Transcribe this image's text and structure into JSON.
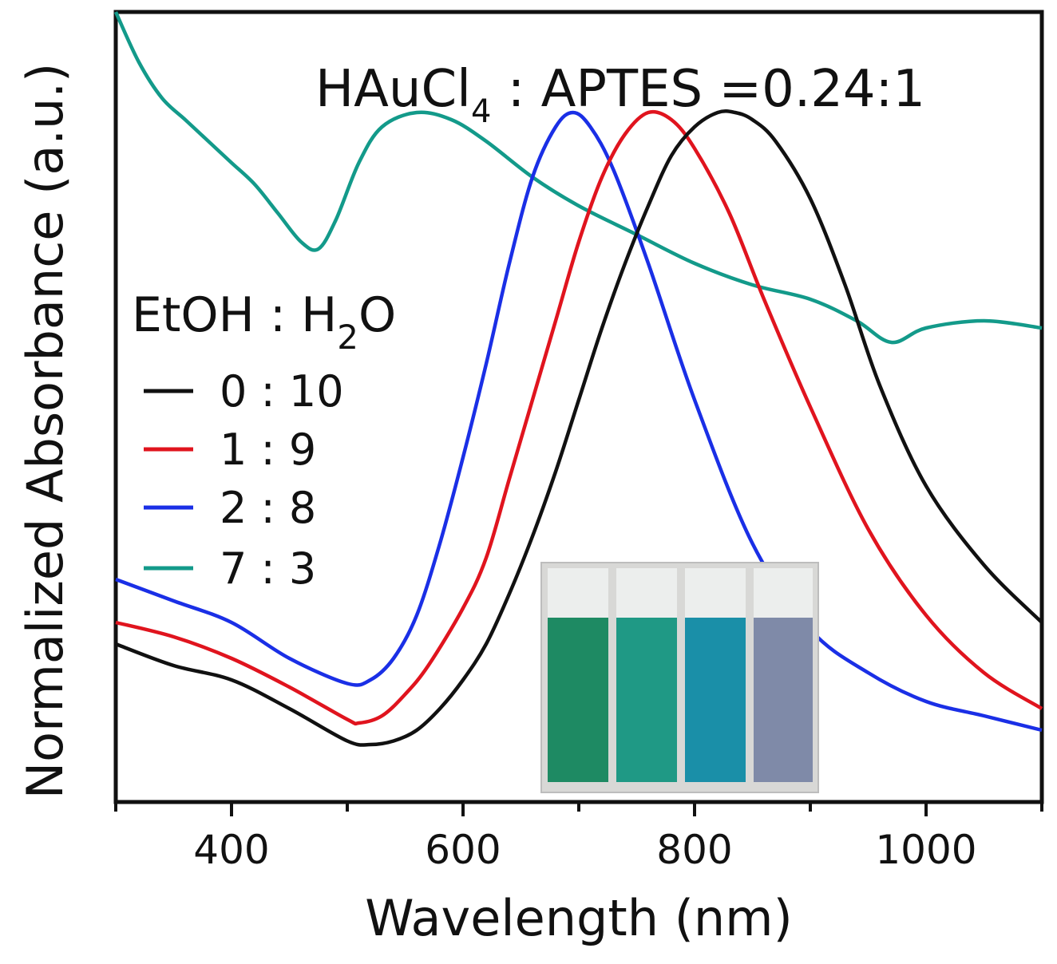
{
  "chart_data": {
    "type": "line",
    "title": "",
    "annotation": {
      "prefix": "HAuCl",
      "subscript": "4",
      "suffix": " : APTES =0.24:1"
    },
    "xlabel": "Wavelength (nm)",
    "ylabel": "Normalized Absorbance (a.u.)",
    "xlim": [
      300,
      1100
    ],
    "ylim": [
      0,
      1.1
    ],
    "xticks": [
      400,
      600,
      800,
      1000
    ],
    "xtick_labels": [
      "400",
      "600",
      "800",
      "1000"
    ],
    "grid": false,
    "legend": {
      "title_prefix": "EtOH : H",
      "title_subscript": "2",
      "title_suffix": "O",
      "placement": "left"
    },
    "inset": "photo of four cuvettes with green, teal, cyan and grey-blue solutions",
    "series": [
      {
        "name": "0 : 10",
        "color": "#111111",
        "x": [
          300,
          350,
          400,
          450,
          500,
          520,
          540,
          560,
          580,
          600,
          620,
          640,
          660,
          680,
          700,
          720,
          740,
          760,
          780,
          800,
          820,
          835,
          850,
          870,
          900,
          930,
          960,
          1000,
          1050,
          1100
        ],
        "y": [
          0.22,
          0.19,
          0.17,
          0.13,
          0.085,
          0.08,
          0.085,
          0.1,
          0.13,
          0.17,
          0.22,
          0.29,
          0.37,
          0.46,
          0.56,
          0.66,
          0.75,
          0.83,
          0.9,
          0.94,
          0.96,
          0.96,
          0.95,
          0.92,
          0.84,
          0.72,
          0.58,
          0.44,
          0.33,
          0.25
        ]
      },
      {
        "name": "1 : 9",
        "color": "#e0141e",
        "x": [
          300,
          350,
          400,
          450,
          500,
          510,
          530,
          550,
          570,
          600,
          620,
          640,
          660,
          680,
          700,
          720,
          740,
          760,
          780,
          800,
          830,
          860,
          900,
          950,
          1000,
          1050,
          1100
        ],
        "y": [
          0.25,
          0.23,
          0.2,
          0.16,
          0.115,
          0.11,
          0.12,
          0.15,
          0.19,
          0.27,
          0.34,
          0.45,
          0.56,
          0.67,
          0.78,
          0.87,
          0.93,
          0.96,
          0.95,
          0.91,
          0.82,
          0.7,
          0.55,
          0.38,
          0.26,
          0.18,
          0.13
        ]
      },
      {
        "name": "2 : 8",
        "color": "#1a2fe6",
        "x": [
          300,
          350,
          400,
          450,
          500,
          520,
          540,
          560,
          580,
          600,
          620,
          640,
          660,
          680,
          695,
          710,
          730,
          760,
          800,
          850,
          900,
          950,
          1000,
          1050,
          1100
        ],
        "y": [
          0.31,
          0.28,
          0.25,
          0.2,
          0.165,
          0.17,
          0.2,
          0.26,
          0.36,
          0.48,
          0.61,
          0.75,
          0.87,
          0.94,
          0.96,
          0.94,
          0.88,
          0.75,
          0.56,
          0.36,
          0.24,
          0.18,
          0.14,
          0.12,
          0.1
        ]
      },
      {
        "name": "7 : 3",
        "color": "#139a8a",
        "x": [
          300,
          320,
          340,
          360,
          380,
          400,
          420,
          440,
          460,
          475,
          490,
          510,
          530,
          560,
          590,
          620,
          660,
          700,
          750,
          800,
          850,
          900,
          940,
          970,
          1000,
          1050,
          1100
        ],
        "y": [
          1.1,
          1.03,
          0.98,
          0.95,
          0.92,
          0.89,
          0.86,
          0.82,
          0.78,
          0.77,
          0.81,
          0.89,
          0.94,
          0.96,
          0.95,
          0.92,
          0.87,
          0.83,
          0.79,
          0.75,
          0.72,
          0.7,
          0.67,
          0.64,
          0.66,
          0.67,
          0.66
        ]
      }
    ]
  }
}
